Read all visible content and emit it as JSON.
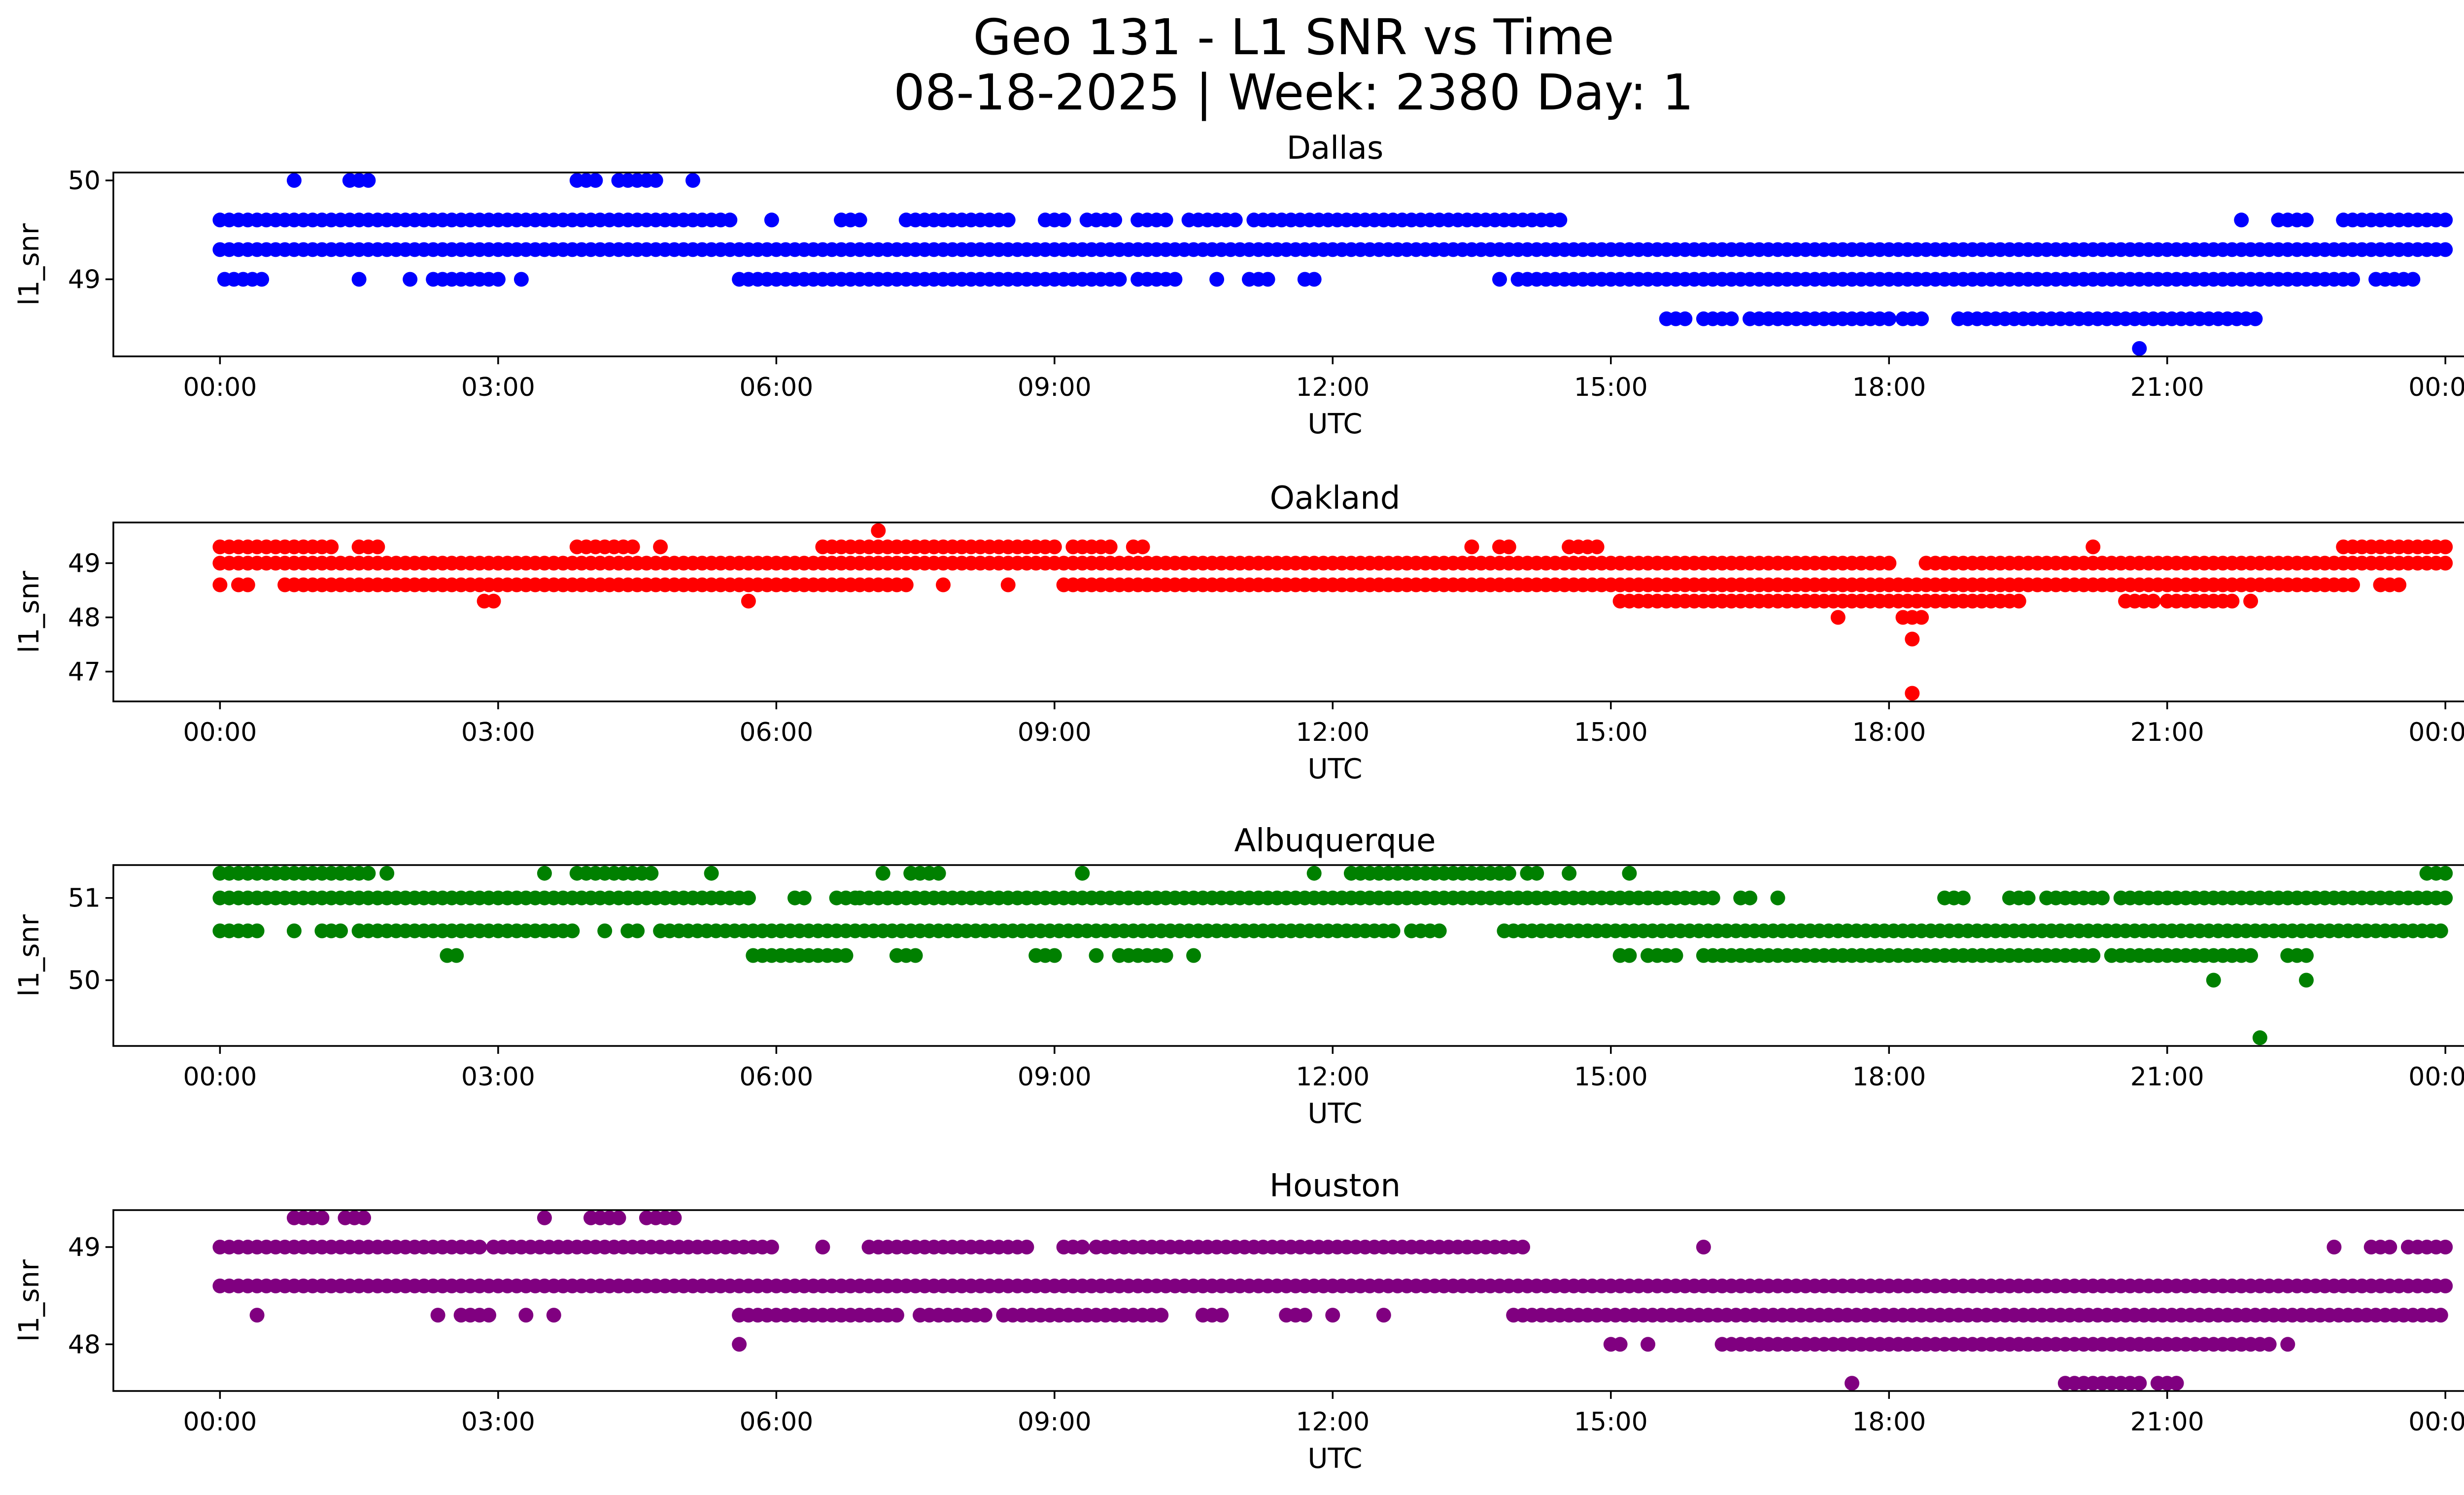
{
  "title_line1": "Geo 131 - L1 SNR vs Time",
  "title_line2": "08-18-2025 | Week: 2380 Day: 1",
  "chart_data": [
    {
      "type": "scatter",
      "title": "Dallas",
      "xlabel": "UTC",
      "ylabel": "l1_snr",
      "color": "#0000ff",
      "xlim_hours": [
        -1.15,
        25.2
      ],
      "ylim": [
        48.22,
        50.08
      ],
      "xticks": [
        "00:00",
        "03:00",
        "06:00",
        "09:00",
        "12:00",
        "15:00",
        "18:00",
        "21:00",
        "00:00"
      ],
      "yticks": [
        49,
        50
      ],
      "series": [
        {
          "y": 49.3,
          "ranges_hours": [
            [
              0.0,
              24.0
            ]
          ]
        },
        {
          "y": 49.6,
          "ranges_hours": [
            [
              0.0,
              5.55
            ],
            [
              5.95,
              5.95
            ],
            [
              6.7,
              6.95
            ],
            [
              7.4,
              8.55
            ],
            [
              8.9,
              9.15
            ],
            [
              9.35,
              9.65
            ],
            [
              9.9,
              10.2
            ],
            [
              10.45,
              10.95
            ],
            [
              11.15,
              14.5
            ],
            [
              21.8,
              21.8
            ],
            [
              22.2,
              22.5
            ],
            [
              22.9,
              24.0
            ]
          ]
        },
        {
          "y": 49.0,
          "ranges_hours": [
            [
              0.05,
              0.35
            ],
            [
              0.45,
              0.45
            ],
            [
              1.5,
              1.5
            ],
            [
              2.05,
              2.05
            ],
            [
              2.3,
              3.0
            ],
            [
              3.25,
              3.25
            ],
            [
              5.6,
              9.7
            ],
            [
              9.9,
              10.3
            ],
            [
              10.75,
              10.8
            ],
            [
              11.1,
              11.3
            ],
            [
              11.7,
              11.85
            ],
            [
              13.8,
              13.8
            ],
            [
              14.0,
              23.0
            ],
            [
              23.25,
              23.7
            ]
          ]
        },
        {
          "y": 48.6,
          "ranges_hours": [
            [
              15.6,
              15.8
            ],
            [
              16.0,
              16.3
            ],
            [
              16.5,
              18.0
            ],
            [
              18.15,
              18.4
            ],
            [
              18.75,
              22.0
            ]
          ]
        },
        {
          "y": 50.0,
          "ranges_hours": [
            [
              0.8,
              0.85
            ],
            [
              1.4,
              1.6
            ],
            [
              3.85,
              4.1
            ],
            [
              4.3,
              4.75
            ],
            [
              5.1,
              5.1
            ]
          ]
        },
        {
          "y": 48.3,
          "ranges_hours": [
            [
              20.7,
              20.7
            ]
          ]
        }
      ]
    },
    {
      "type": "scatter",
      "title": "Oakland",
      "xlabel": "UTC",
      "ylabel": "l1_snr",
      "color": "#ff0000",
      "xlim_hours": [
        -1.15,
        25.2
      ],
      "ylim": [
        46.45,
        49.75
      ],
      "xticks": [
        "00:00",
        "03:00",
        "06:00",
        "09:00",
        "12:00",
        "15:00",
        "18:00",
        "21:00",
        "00:00"
      ],
      "yticks": [
        47,
        48,
        49
      ],
      "series": [
        {
          "y": 49.0,
          "ranges_hours": [
            [
              0.0,
              18.0
            ],
            [
              18.4,
              24.0
            ]
          ]
        },
        {
          "y": 48.6,
          "ranges_hours": [
            [
              0.0,
              0.05
            ],
            [
              0.2,
              0.35
            ],
            [
              0.7,
              7.4
            ],
            [
              7.8,
              7.8
            ],
            [
              8.5,
              8.5
            ],
            [
              9.1,
              23.0
            ],
            [
              23.3,
              23.5
            ]
          ]
        },
        {
          "y": 49.3,
          "ranges_hours": [
            [
              0.0,
              1.2
            ],
            [
              1.5,
              1.7
            ],
            [
              3.85,
              4.5
            ],
            [
              4.75,
              4.75
            ],
            [
              6.5,
              9.0
            ],
            [
              9.2,
              9.6
            ],
            [
              9.85,
              10.0
            ],
            [
              13.5,
              13.5
            ],
            [
              13.8,
              13.9
            ],
            [
              14.55,
              14.9
            ],
            [
              20.2,
              20.2
            ],
            [
              22.9,
              24.0
            ]
          ]
        },
        {
          "y": 48.3,
          "ranges_hours": [
            [
              2.85,
              3.0
            ],
            [
              5.7,
              5.7
            ],
            [
              15.1,
              19.4
            ],
            [
              20.55,
              20.9
            ],
            [
              21.0,
              21.7
            ],
            [
              21.9,
              21.9
            ]
          ]
        },
        {
          "y": 48.0,
          "ranges_hours": [
            [
              17.45,
              17.45
            ],
            [
              18.15,
              18.35
            ]
          ]
        },
        {
          "y": 49.6,
          "ranges_hours": [
            [
              7.1,
              7.1
            ]
          ]
        },
        {
          "y": 47.6,
          "ranges_hours": [
            [
              18.25,
              18.25
            ]
          ]
        },
        {
          "y": 46.6,
          "ranges_hours": [
            [
              18.25,
              18.25
            ]
          ]
        }
      ]
    },
    {
      "type": "scatter",
      "title": "Albuquerque",
      "xlabel": "UTC",
      "ylabel": "l1_snr",
      "color": "#008000",
      "xlim_hours": [
        -1.15,
        25.2
      ],
      "ylim": [
        49.2,
        51.4
      ],
      "xticks": [
        "00:00",
        "03:00",
        "06:00",
        "09:00",
        "12:00",
        "15:00",
        "18:00",
        "21:00",
        "00:00"
      ],
      "yticks": [
        50,
        51
      ],
      "series": [
        {
          "y": 51.0,
          "ranges_hours": [
            [
              0.0,
              5.7
            ],
            [
              6.2,
              6.35
            ],
            [
              6.65,
              6.85
            ],
            [
              6.9,
              16.1
            ],
            [
              16.4,
              16.5
            ],
            [
              16.8,
              16.8
            ],
            [
              18.6,
              18.8
            ],
            [
              19.3,
              19.5
            ],
            [
              19.7,
              20.3
            ],
            [
              20.5,
              24.0
            ]
          ]
        },
        {
          "y": 50.6,
          "ranges_hours": [
            [
              0.0,
              0.4
            ],
            [
              0.8,
              0.8
            ],
            [
              1.1,
              1.35
            ],
            [
              1.5,
              3.85
            ],
            [
              4.15,
              4.15
            ],
            [
              4.4,
              4.55
            ],
            [
              4.75,
              12.65
            ],
            [
              12.85,
              13.15
            ],
            [
              13.85,
              24.0
            ]
          ]
        },
        {
          "y": 51.3,
          "ranges_hours": [
            [
              0.0,
              1.65
            ],
            [
              1.8,
              1.8
            ],
            [
              3.5,
              3.5
            ],
            [
              3.85,
              4.7
            ],
            [
              5.3,
              5.3
            ],
            [
              7.15,
              7.15
            ],
            [
              7.45,
              7.75
            ],
            [
              9.3,
              9.3
            ],
            [
              11.8,
              11.8
            ],
            [
              12.2,
              13.9
            ],
            [
              14.1,
              14.2
            ],
            [
              14.55,
              14.55
            ],
            [
              15.2,
              15.2
            ],
            [
              23.8,
              24.0
            ]
          ]
        },
        {
          "y": 50.3,
          "ranges_hours": [
            [
              2.45,
              2.6
            ],
            [
              5.75,
              6.8
            ],
            [
              7.3,
              7.5
            ],
            [
              8.8,
              9.0
            ],
            [
              9.45,
              9.45
            ],
            [
              9.7,
              10.2
            ],
            [
              10.5,
              10.5
            ],
            [
              15.1,
              15.2
            ],
            [
              15.4,
              15.75
            ],
            [
              16.0,
              20.2
            ],
            [
              20.4,
              21.9
            ],
            [
              22.3,
              22.5
            ]
          ]
        },
        {
          "y": 50.0,
          "ranges_hours": [
            [
              21.5,
              21.5
            ],
            [
              22.5,
              22.5
            ]
          ]
        },
        {
          "y": 49.3,
          "ranges_hours": [
            [
              22.0,
              22.0
            ]
          ]
        }
      ]
    },
    {
      "type": "scatter",
      "title": "Houston",
      "xlabel": "UTC",
      "ylabel": "l1_snr",
      "color": "#800080",
      "xlim_hours": [
        -1.15,
        25.2
      ],
      "ylim": [
        47.52,
        49.38
      ],
      "xticks": [
        "00:00",
        "03:00",
        "06:00",
        "09:00",
        "12:00",
        "15:00",
        "18:00",
        "21:00",
        "00:00"
      ],
      "yticks": [
        48,
        49
      ],
      "series": [
        {
          "y": 48.6,
          "ranges_hours": [
            [
              0.0,
              24.0
            ]
          ]
        },
        {
          "y": 49.0,
          "ranges_hours": [
            [
              0.0,
              2.8
            ],
            [
              2.95,
              6.0
            ],
            [
              6.5,
              6.5
            ],
            [
              7.0,
              8.5
            ],
            [
              8.6,
              8.7
            ],
            [
              9.1,
              9.3
            ],
            [
              9.45,
              14.1
            ],
            [
              16.0,
              16.0
            ],
            [
              22.8,
              22.8
            ],
            [
              23.2,
              23.4
            ],
            [
              23.6,
              24.0
            ]
          ]
        },
        {
          "y": 48.3,
          "ranges_hours": [
            [
              0.4,
              0.4
            ],
            [
              2.35,
              2.4
            ],
            [
              2.6,
              2.95
            ],
            [
              3.3,
              3.35
            ],
            [
              3.6,
              3.6
            ],
            [
              5.6,
              7.35
            ],
            [
              7.55,
              8.3
            ],
            [
              8.45,
              10.2
            ],
            [
              10.6,
              10.8
            ],
            [
              11.5,
              11.7
            ],
            [
              12.0,
              12.0
            ],
            [
              12.55,
              12.55
            ],
            [
              13.95,
              24.0
            ]
          ]
        },
        {
          "y": 48.0,
          "ranges_hours": [
            [
              5.6,
              5.6
            ],
            [
              15.0,
              15.15
            ],
            [
              15.4,
              15.4
            ],
            [
              16.2,
              16.4
            ],
            [
              16.5,
              22.1
            ],
            [
              22.3,
              22.3
            ]
          ]
        },
        {
          "y": 49.3,
          "ranges_hours": [
            [
              0.8,
              1.1
            ],
            [
              1.35,
              1.55
            ],
            [
              3.5,
              3.5
            ],
            [
              4.0,
              4.35
            ],
            [
              4.6,
              4.95
            ]
          ]
        },
        {
          "y": 47.6,
          "ranges_hours": [
            [
              17.6,
              17.6
            ],
            [
              19.9,
              20.3
            ],
            [
              20.4,
              20.7
            ],
            [
              20.9,
              21.1
            ],
            [
              21.1,
              21.1
            ]
          ]
        }
      ]
    }
  ]
}
